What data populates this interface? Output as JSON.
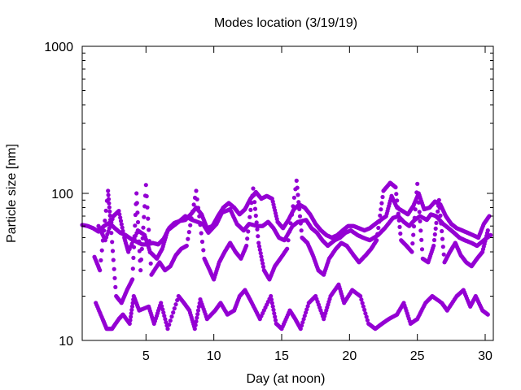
{
  "chart_data": {
    "type": "scatter",
    "title": "Modes location (3/19/19)",
    "xlabel": "Day (at noon)",
    "ylabel": "Particle size [nm]",
    "xlim": [
      0.3,
      30.6
    ],
    "ylim": [
      10,
      1000
    ],
    "yscale": "log",
    "x_ticks": [
      5,
      10,
      15,
      20,
      25,
      30
    ],
    "y_ticks": [
      10,
      100,
      1000
    ],
    "x_tick_labels": [
      "5",
      "10",
      "15",
      "20",
      "25",
      "30"
    ],
    "y_tick_labels": [
      "10",
      "100",
      "1000"
    ],
    "grid": false,
    "legend": "none",
    "marker_color": "#9400d3",
    "series": [
      {
        "segments": [
          [
            [
              0.3,
              61
            ],
            [
              0.7,
              60
            ],
            [
              1.1,
              58
            ],
            [
              1.5,
              55
            ],
            [
              1.9,
              60
            ],
            [
              2.3,
              63
            ],
            [
              2.7,
              58
            ],
            [
              3.1,
              54
            ],
            [
              3.5,
              52
            ],
            [
              3.9,
              49
            ],
            [
              4.3,
              47
            ],
            [
              4.7,
              45
            ],
            [
              5.1,
              45
            ],
            [
              5.5,
              46
            ],
            [
              5.9,
              45
            ],
            [
              6.3,
              49
            ],
            [
              6.7,
              58
            ],
            [
              7.1,
              63
            ],
            [
              7.5,
              65
            ],
            [
              7.9,
              66
            ],
            [
              8.3,
              72
            ],
            [
              8.7,
              80
            ],
            [
              9.1,
              72
            ],
            [
              9.5,
              58
            ],
            [
              9.9,
              60
            ],
            [
              10.3,
              70
            ],
            [
              10.7,
              80
            ],
            [
              11.1,
              86
            ],
            [
              11.5,
              80
            ],
            [
              11.9,
              72
            ],
            [
              12.3,
              78
            ],
            [
              12.7,
              92
            ],
            [
              13.1,
              102
            ],
            [
              13.5,
              92
            ],
            [
              13.9,
              96
            ],
            [
              14.3,
              92
            ],
            [
              14.7,
              64
            ],
            [
              15.1,
              58
            ],
            [
              15.5,
              66
            ],
            [
              15.9,
              78
            ],
            [
              16.3,
              84
            ],
            [
              16.7,
              80
            ],
            [
              17.1,
              72
            ],
            [
              17.5,
              62
            ],
            [
              17.9,
              56
            ],
            [
              18.3,
              52
            ],
            [
              18.7,
              50
            ],
            [
              19.1,
              52
            ],
            [
              19.5,
              56
            ],
            [
              19.9,
              60
            ],
            [
              20.3,
              60
            ],
            [
              20.7,
              58
            ],
            [
              21.1,
              56
            ],
            [
              21.5,
              58
            ],
            [
              21.9,
              62
            ],
            [
              22.3,
              66
            ],
            [
              22.7,
              70
            ],
            [
              23.1,
              96
            ],
            [
              23.5,
              80
            ],
            [
              23.9,
              76
            ],
            [
              24.3,
              72
            ],
            [
              24.7,
              82
            ],
            [
              25.1,
              100
            ],
            [
              25.5,
              78
            ],
            [
              25.9,
              80
            ],
            [
              26.3,
              88
            ],
            [
              26.7,
              84
            ],
            [
              27.1,
              70
            ],
            [
              27.5,
              62
            ],
            [
              27.9,
              58
            ],
            [
              28.3,
              56
            ],
            [
              28.7,
              54
            ],
            [
              29.1,
              52
            ],
            [
              29.5,
              50
            ],
            [
              29.9,
              62
            ],
            [
              30.3,
              70
            ]
          ],
          [
            [
              1.2,
              37
            ],
            [
              1.6,
              30
            ],
            [
              2.2,
              104
            ],
            [
              2.4,
              62
            ],
            [
              2.8,
              20
            ],
            [
              3.2,
              18
            ],
            [
              3.6,
              22
            ],
            [
              4.0,
              26
            ],
            [
              4.3,
              100
            ],
            [
              4.6,
              30
            ],
            [
              5.0,
              114
            ],
            [
              5.4,
              28
            ],
            [
              6.0,
              34
            ],
            [
              6.4,
              30
            ],
            [
              6.8,
              32
            ],
            [
              7.2,
              38
            ],
            [
              7.6,
              42
            ],
            [
              8.0,
              44
            ],
            [
              8.7,
              104
            ],
            [
              9.3,
              36
            ],
            [
              9.7,
              30
            ],
            [
              10.0,
              26
            ],
            [
              10.4,
              34
            ],
            [
              10.8,
              40
            ],
            [
              11.2,
              46
            ],
            [
              11.6,
              40
            ],
            [
              12.0,
              36
            ],
            [
              12.4,
              44
            ],
            [
              12.9,
              108
            ],
            [
              13.3,
              46
            ],
            [
              13.7,
              30
            ],
            [
              14.1,
              26
            ],
            [
              14.5,
              32
            ],
            [
              14.9,
              36
            ],
            [
              15.4,
              42
            ],
            [
              16.1,
              122
            ],
            [
              16.5,
              50
            ],
            [
              16.9,
              46
            ],
            [
              17.3,
              38
            ],
            [
              17.7,
              30
            ],
            [
              18.1,
              28
            ],
            [
              18.5,
              36
            ],
            [
              19.0,
              42
            ],
            [
              19.4,
              46
            ],
            [
              19.8,
              44
            ],
            [
              20.3,
              38
            ],
            [
              20.7,
              34
            ],
            [
              21.2,
              38
            ],
            [
              21.6,
              42
            ],
            [
              22.0,
              48
            ],
            [
              22.5,
              104
            ],
            [
              23.0,
              118
            ],
            [
              23.4,
              110
            ],
            [
              23.8,
              48
            ],
            [
              24.2,
              44
            ],
            [
              24.6,
              40
            ],
            [
              25.0,
              116
            ],
            [
              25.4,
              36
            ],
            [
              25.8,
              34
            ],
            [
              26.2,
              44
            ],
            [
              26.6,
              90
            ],
            [
              27.0,
              34
            ],
            [
              27.4,
              40
            ],
            [
              27.8,
              46
            ],
            [
              28.2,
              38
            ],
            [
              28.6,
              34
            ],
            [
              29.0,
              32
            ],
            [
              29.4,
              36
            ],
            [
              29.8,
              40
            ],
            [
              30.2,
              56
            ]
          ],
          [
            [
              1.3,
              18
            ],
            [
              1.8,
              14
            ],
            [
              2.1,
              12
            ],
            [
              2.5,
              12
            ],
            [
              3.0,
              14
            ],
            [
              3.3,
              15
            ],
            [
              3.8,
              13
            ],
            [
              4.1,
              20
            ],
            [
              4.5,
              16
            ],
            [
              5.2,
              17
            ],
            [
              5.6,
              13
            ],
            [
              6.1,
              18
            ],
            [
              6.6,
              12
            ],
            [
              7.4,
              20
            ],
            [
              7.8,
              18
            ],
            [
              8.2,
              16
            ],
            [
              8.6,
              12
            ],
            [
              9.0,
              19
            ],
            [
              9.5,
              14
            ],
            [
              10.1,
              16
            ],
            [
              10.5,
              18
            ],
            [
              11.0,
              15
            ],
            [
              11.5,
              16
            ],
            [
              11.9,
              20
            ],
            [
              12.3,
              22
            ],
            [
              12.8,
              18
            ],
            [
              13.4,
              14
            ],
            [
              14.2,
              20
            ],
            [
              14.6,
              13
            ],
            [
              15.0,
              12
            ],
            [
              15.6,
              16
            ],
            [
              16.0,
              14
            ],
            [
              16.4,
              12
            ],
            [
              17.0,
              18
            ],
            [
              17.5,
              20
            ],
            [
              18.1,
              14
            ],
            [
              18.6,
              20
            ],
            [
              19.2,
              24
            ],
            [
              19.6,
              18
            ],
            [
              20.2,
              22
            ],
            [
              20.8,
              20
            ],
            [
              21.4,
              13
            ],
            [
              21.9,
              12
            ],
            [
              22.4,
              13
            ],
            [
              22.9,
              14
            ],
            [
              23.5,
              15
            ],
            [
              24.0,
              18
            ],
            [
              24.5,
              13
            ],
            [
              25.0,
              14
            ],
            [
              25.6,
              18
            ],
            [
              26.1,
              20
            ],
            [
              26.8,
              18
            ],
            [
              27.2,
              16
            ],
            [
              27.9,
              20
            ],
            [
              28.4,
              22
            ],
            [
              28.9,
              17
            ],
            [
              29.3,
              20
            ],
            [
              29.8,
              16
            ],
            [
              30.2,
              15
            ]
          ],
          [
            [
              1.5,
              60
            ],
            [
              2.0,
              48
            ],
            [
              2.6,
              70
            ],
            [
              3.0,
              76
            ],
            [
              3.4,
              50
            ],
            [
              3.7,
              40
            ],
            [
              4.4,
              56
            ],
            [
              4.9,
              52
            ],
            [
              5.3,
              40
            ],
            [
              5.8,
              36
            ],
            [
              6.2,
              42
            ],
            [
              6.6,
              56
            ],
            [
              7.0,
              60
            ],
            [
              7.4,
              64
            ],
            [
              7.9,
              70
            ],
            [
              8.4,
              66
            ],
            [
              9.2,
              62
            ],
            [
              9.6,
              54
            ],
            [
              10.2,
              62
            ],
            [
              10.6,
              74
            ],
            [
              11.2,
              78
            ],
            [
              11.7,
              62
            ],
            [
              12.2,
              56
            ],
            [
              12.6,
              62
            ],
            [
              13.2,
              60
            ],
            [
              13.6,
              60
            ],
            [
              14.0,
              64
            ],
            [
              14.4,
              58
            ],
            [
              14.8,
              50
            ],
            [
              15.2,
              48
            ],
            [
              15.8,
              60
            ],
            [
              16.2,
              64
            ],
            [
              16.8,
              66
            ],
            [
              17.2,
              58
            ],
            [
              17.6,
              54
            ],
            [
              18.0,
              48
            ],
            [
              18.4,
              44
            ],
            [
              18.9,
              48
            ],
            [
              19.3,
              50
            ],
            [
              19.7,
              54
            ],
            [
              20.1,
              56
            ],
            [
              20.6,
              52
            ],
            [
              21.0,
              50
            ],
            [
              21.5,
              48
            ],
            [
              22.1,
              52
            ],
            [
              22.6,
              58
            ],
            [
              23.2,
              68
            ],
            [
              23.6,
              70
            ],
            [
              24.0,
              64
            ],
            [
              24.4,
              60
            ],
            [
              24.8,
              66
            ],
            [
              25.2,
              70
            ],
            [
              25.7,
              66
            ],
            [
              26.0,
              72
            ],
            [
              26.4,
              70
            ],
            [
              26.9,
              62
            ],
            [
              27.3,
              58
            ],
            [
              27.7,
              54
            ],
            [
              28.1,
              50
            ],
            [
              28.5,
              48
            ],
            [
              29.0,
              46
            ],
            [
              29.4,
              44
            ],
            [
              29.9,
              48
            ],
            [
              30.4,
              52
            ]
          ]
        ]
      }
    ]
  }
}
